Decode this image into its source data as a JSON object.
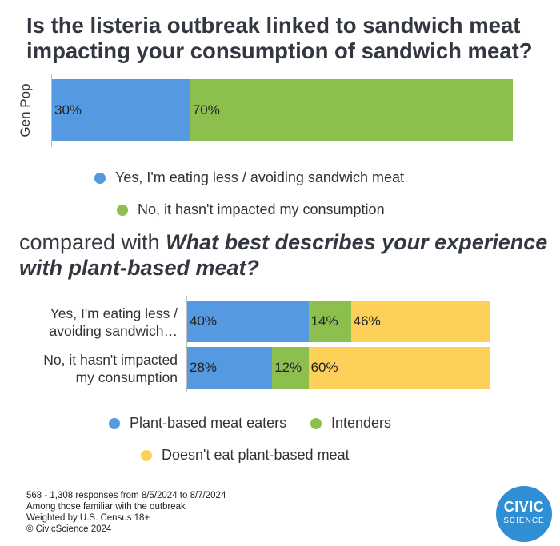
{
  "title": "Is the listeria outbreak linked to sandwich meat impacting your consumption of sandwich meat?",
  "subtitle": {
    "prefix": "compared with ",
    "question": "What best describes your experience with plant-based meat?"
  },
  "colors": {
    "blue": "#5599e0",
    "green": "#8dbf4f",
    "yellow": "#fdd05a"
  },
  "chart_data": [
    {
      "type": "bar",
      "orientation": "horizontal",
      "stacked": true,
      "categories": [
        "Gen Pop"
      ],
      "series": [
        {
          "name": "Yes, I'm eating less / avoiding sandwich meat",
          "values": [
            30
          ],
          "labels": [
            "30%"
          ],
          "color": "#5599e0"
        },
        {
          "name": "No, it hasn't impacted my consumption",
          "values": [
            70
          ],
          "labels": [
            "70%"
          ],
          "color": "#8dbf4f"
        }
      ],
      "xlim": [
        0,
        100
      ]
    },
    {
      "type": "bar",
      "orientation": "horizontal",
      "stacked": true,
      "categories": [
        "Yes, I'm eating less / avoiding sandwich…",
        "No, it hasn't impacted my consumption"
      ],
      "category_lines": [
        [
          "Yes, I'm eating less /",
          "avoiding sandwich…"
        ],
        [
          "No, it hasn't impacted",
          "my consumption"
        ]
      ],
      "series": [
        {
          "name": "Plant-based meat eaters",
          "values": [
            40,
            28
          ],
          "labels": [
            "40%",
            "28%"
          ],
          "color": "#5599e0"
        },
        {
          "name": "Intenders",
          "values": [
            14,
            12
          ],
          "labels": [
            "14%",
            "12%"
          ],
          "color": "#8dbf4f"
        },
        {
          "name": "Doesn't eat plant-based meat",
          "values": [
            46,
            60
          ],
          "labels": [
            "46%",
            "60%"
          ],
          "color": "#fdd05a"
        }
      ],
      "xlim": [
        0,
        100
      ]
    }
  ],
  "footnotes": [
    "568 - 1,308 responses from 8/5/2024 to 8/7/2024",
    "Among those familiar with the outbreak",
    "Weighted by U.S. Census 18+",
    "© CivicScience 2024"
  ],
  "logo": {
    "line1": "CIVIC",
    "line2": "SCIENCE"
  }
}
